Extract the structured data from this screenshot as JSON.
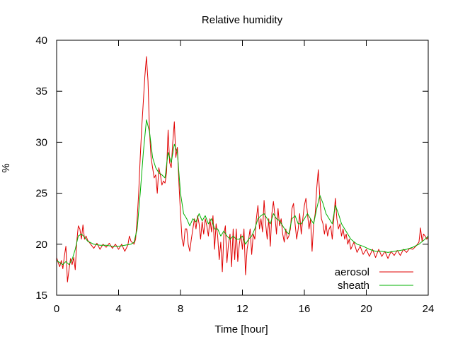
{
  "chart_data": {
    "type": "line",
    "title": "Relative humidity",
    "xlabel": "Time [hour]",
    "ylabel": "%",
    "xlim": [
      0,
      24
    ],
    "ylim": [
      15,
      40
    ],
    "xticks": [
      0,
      4,
      8,
      12,
      16,
      20,
      24
    ],
    "yticks": [
      15,
      20,
      25,
      30,
      35,
      40
    ],
    "grid": false,
    "legend_position": "bottom-right",
    "series": [
      {
        "name": "aerosol",
        "color": "#e00000",
        "points": [
          [
            0,
            18.7
          ],
          [
            0.1,
            18.2
          ],
          [
            0.2,
            17.8
          ],
          [
            0.3,
            18.4
          ],
          [
            0.4,
            17.6
          ],
          [
            0.5,
            18.8
          ],
          [
            0.6,
            19.8
          ],
          [
            0.7,
            16.3
          ],
          [
            0.8,
            17.5
          ],
          [
            0.9,
            18.6
          ],
          [
            1.0,
            18.0
          ],
          [
            1.1,
            18.7
          ],
          [
            1.2,
            17.5
          ],
          [
            1.3,
            20.2
          ],
          [
            1.4,
            21.8
          ],
          [
            1.5,
            21.5
          ],
          [
            1.6,
            20.5
          ],
          [
            1.7,
            21.9
          ],
          [
            1.8,
            20.5
          ],
          [
            1.9,
            20.8
          ],
          [
            2.0,
            20.4
          ],
          [
            2.2,
            20.0
          ],
          [
            2.4,
            19.6
          ],
          [
            2.6,
            20.1
          ],
          [
            2.8,
            19.5
          ],
          [
            3.0,
            20.0
          ],
          [
            3.2,
            19.7
          ],
          [
            3.4,
            20.1
          ],
          [
            3.6,
            19.6
          ],
          [
            3.8,
            20.0
          ],
          [
            4.0,
            19.5
          ],
          [
            4.2,
            20.0
          ],
          [
            4.4,
            19.3
          ],
          [
            4.6,
            19.9
          ],
          [
            4.7,
            20.8
          ],
          [
            4.8,
            20.3
          ],
          [
            5.0,
            20.0
          ],
          [
            5.1,
            20.5
          ],
          [
            5.2,
            22.5
          ],
          [
            5.3,
            25.0
          ],
          [
            5.4,
            28.5
          ],
          [
            5.5,
            31.5
          ],
          [
            5.6,
            34.0
          ],
          [
            5.7,
            36.5
          ],
          [
            5.8,
            38.4
          ],
          [
            5.9,
            36.0
          ],
          [
            6.0,
            31.0
          ],
          [
            6.1,
            28.5
          ],
          [
            6.2,
            27.5
          ],
          [
            6.3,
            26.5
          ],
          [
            6.4,
            26.8
          ],
          [
            6.5,
            25.0
          ],
          [
            6.6,
            27.5
          ],
          [
            6.7,
            26.8
          ],
          [
            6.8,
            25.8
          ],
          [
            6.9,
            26.2
          ],
          [
            7.0,
            26.0
          ],
          [
            7.1,
            27.0
          ],
          [
            7.2,
            31.2
          ],
          [
            7.3,
            28.0
          ],
          [
            7.4,
            27.5
          ],
          [
            7.5,
            30.0
          ],
          [
            7.6,
            32.0
          ],
          [
            7.7,
            28.5
          ],
          [
            7.8,
            29.5
          ],
          [
            7.9,
            26.0
          ],
          [
            8.0,
            23.0
          ],
          [
            8.1,
            20.5
          ],
          [
            8.2,
            19.8
          ],
          [
            8.3,
            21.5
          ],
          [
            8.4,
            21.5
          ],
          [
            8.5,
            20.0
          ],
          [
            8.6,
            19.3
          ],
          [
            8.7,
            20.5
          ],
          [
            8.8,
            21.5
          ],
          [
            8.9,
            22.5
          ],
          [
            9.0,
            21.5
          ],
          [
            9.1,
            22.8
          ],
          [
            9.2,
            22.0
          ],
          [
            9.3,
            20.5
          ],
          [
            9.4,
            22.2
          ],
          [
            9.5,
            21.0
          ],
          [
            9.6,
            22.5
          ],
          [
            9.7,
            21.8
          ],
          [
            9.8,
            20.8
          ],
          [
            9.9,
            22.5
          ],
          [
            10.0,
            21.2
          ],
          [
            10.1,
            22.8
          ],
          [
            10.2,
            19.5
          ],
          [
            10.3,
            22.0
          ],
          [
            10.4,
            20.8
          ],
          [
            10.5,
            18.5
          ],
          [
            10.6,
            20.2
          ],
          [
            10.7,
            17.3
          ],
          [
            10.8,
            21.0
          ],
          [
            10.9,
            21.8
          ],
          [
            11.0,
            18.2
          ],
          [
            11.1,
            20.0
          ],
          [
            11.2,
            21.0
          ],
          [
            11.3,
            17.8
          ],
          [
            11.4,
            21.5
          ],
          [
            11.5,
            18.5
          ],
          [
            11.6,
            21.5
          ],
          [
            11.7,
            18.3
          ],
          [
            11.8,
            20.0
          ],
          [
            11.9,
            21.0
          ],
          [
            12.0,
            19.5
          ],
          [
            12.1,
            21.5
          ],
          [
            12.2,
            17.0
          ],
          [
            12.3,
            19.5
          ],
          [
            12.4,
            20.5
          ],
          [
            12.5,
            21.5
          ],
          [
            12.6,
            19.0
          ],
          [
            12.7,
            21.0
          ],
          [
            12.8,
            20.5
          ],
          [
            12.9,
            22.5
          ],
          [
            13.0,
            23.8
          ],
          [
            13.1,
            21.5
          ],
          [
            13.2,
            22.5
          ],
          [
            13.3,
            21.2
          ],
          [
            13.4,
            24.3
          ],
          [
            13.5,
            22.0
          ],
          [
            13.6,
            20.5
          ],
          [
            13.7,
            22.5
          ],
          [
            13.8,
            19.8
          ],
          [
            13.9,
            23.0
          ],
          [
            14.0,
            24.2
          ],
          [
            14.1,
            22.8
          ],
          [
            14.2,
            21.0
          ],
          [
            14.3,
            23.5
          ],
          [
            14.4,
            21.8
          ],
          [
            14.5,
            22.5
          ],
          [
            14.6,
            21.0
          ],
          [
            14.7,
            20.2
          ],
          [
            14.8,
            21.5
          ],
          [
            14.9,
            20.5
          ],
          [
            15.0,
            20.8
          ],
          [
            15.1,
            21.5
          ],
          [
            15.2,
            23.5
          ],
          [
            15.3,
            24.0
          ],
          [
            15.4,
            22.0
          ],
          [
            15.5,
            20.5
          ],
          [
            15.6,
            21.5
          ],
          [
            15.7,
            23.0
          ],
          [
            15.8,
            21.0
          ],
          [
            15.9,
            22.5
          ],
          [
            16.0,
            23.8
          ],
          [
            16.1,
            24.5
          ],
          [
            16.2,
            23.0
          ],
          [
            16.3,
            21.5
          ],
          [
            16.4,
            22.5
          ],
          [
            16.5,
            19.3
          ],
          [
            16.6,
            22.0
          ],
          [
            16.7,
            23.0
          ],
          [
            16.8,
            25.5
          ],
          [
            16.9,
            27.3
          ],
          [
            17.0,
            24.5
          ],
          [
            17.1,
            22.5
          ],
          [
            17.2,
            22.0
          ],
          [
            17.3,
            21.0
          ],
          [
            17.4,
            22.0
          ],
          [
            17.5,
            20.8
          ],
          [
            17.6,
            21.5
          ],
          [
            17.7,
            21.8
          ],
          [
            17.8,
            20.5
          ],
          [
            17.9,
            22.5
          ],
          [
            18.0,
            24.5
          ],
          [
            18.1,
            22.5
          ],
          [
            18.2,
            21.5
          ],
          [
            18.3,
            22.0
          ],
          [
            18.4,
            20.8
          ],
          [
            18.5,
            21.5
          ],
          [
            18.6,
            20.5
          ],
          [
            18.7,
            21.0
          ],
          [
            18.8,
            20.0
          ],
          [
            18.9,
            20.5
          ],
          [
            19.0,
            19.5
          ],
          [
            19.2,
            20.2
          ],
          [
            19.4,
            19.2
          ],
          [
            19.6,
            19.8
          ],
          [
            19.8,
            19.0
          ],
          [
            20.0,
            19.5
          ],
          [
            20.2,
            18.8
          ],
          [
            20.4,
            19.5
          ],
          [
            20.6,
            18.7
          ],
          [
            20.8,
            19.5
          ],
          [
            21.0,
            18.8
          ],
          [
            21.2,
            19.3
          ],
          [
            21.4,
            18.6
          ],
          [
            21.6,
            19.3
          ],
          [
            21.8,
            18.9
          ],
          [
            22.0,
            19.4
          ],
          [
            22.2,
            18.9
          ],
          [
            22.4,
            19.5
          ],
          [
            22.6,
            19.2
          ],
          [
            22.8,
            19.6
          ],
          [
            23.0,
            19.5
          ],
          [
            23.2,
            19.8
          ],
          [
            23.4,
            20.2
          ],
          [
            23.5,
            21.6
          ],
          [
            23.6,
            20.3
          ],
          [
            23.7,
            21.0
          ],
          [
            23.8,
            20.8
          ],
          [
            23.9,
            20.5
          ],
          [
            24.0,
            20.7
          ]
        ]
      },
      {
        "name": "sheath",
        "color": "#00b000",
        "points": [
          [
            0,
            18.4
          ],
          [
            0.2,
            18.2
          ],
          [
            0.4,
            18.0
          ],
          [
            0.6,
            18.3
          ],
          [
            0.8,
            18.0
          ],
          [
            1.0,
            18.5
          ],
          [
            1.2,
            19.5
          ],
          [
            1.4,
            20.8
          ],
          [
            1.6,
            21.0
          ],
          [
            1.8,
            20.7
          ],
          [
            2.0,
            20.3
          ],
          [
            2.4,
            20.0
          ],
          [
            2.8,
            19.9
          ],
          [
            3.2,
            19.9
          ],
          [
            3.6,
            19.8
          ],
          [
            4.0,
            19.8
          ],
          [
            4.4,
            19.9
          ],
          [
            4.8,
            20.0
          ],
          [
            5.0,
            20.2
          ],
          [
            5.2,
            21.5
          ],
          [
            5.4,
            25.0
          ],
          [
            5.6,
            29.0
          ],
          [
            5.8,
            32.2
          ],
          [
            6.0,
            31.0
          ],
          [
            6.2,
            28.5
          ],
          [
            6.4,
            27.5
          ],
          [
            6.6,
            27.0
          ],
          [
            6.8,
            26.8
          ],
          [
            7.0,
            26.5
          ],
          [
            7.2,
            29.0
          ],
          [
            7.4,
            28.0
          ],
          [
            7.6,
            29.8
          ],
          [
            7.8,
            29.0
          ],
          [
            8.0,
            25.0
          ],
          [
            8.2,
            23.0
          ],
          [
            8.4,
            22.5
          ],
          [
            8.6,
            21.8
          ],
          [
            8.8,
            22.5
          ],
          [
            9.0,
            22.2
          ],
          [
            9.2,
            23.0
          ],
          [
            9.4,
            22.3
          ],
          [
            9.6,
            22.8
          ],
          [
            9.8,
            22.0
          ],
          [
            10.0,
            22.5
          ],
          [
            10.2,
            21.5
          ],
          [
            10.4,
            21.5
          ],
          [
            10.6,
            20.8
          ],
          [
            10.8,
            21.3
          ],
          [
            11.0,
            20.8
          ],
          [
            11.2,
            20.5
          ],
          [
            11.4,
            20.8
          ],
          [
            11.6,
            20.5
          ],
          [
            11.8,
            20.5
          ],
          [
            12.0,
            20.8
          ],
          [
            12.2,
            20.0
          ],
          [
            12.4,
            20.5
          ],
          [
            12.6,
            20.8
          ],
          [
            12.8,
            21.5
          ],
          [
            13.0,
            22.5
          ],
          [
            13.2,
            22.8
          ],
          [
            13.4,
            23.0
          ],
          [
            13.6,
            22.5
          ],
          [
            13.8,
            22.0
          ],
          [
            14.0,
            23.0
          ],
          [
            14.2,
            22.5
          ],
          [
            14.4,
            22.3
          ],
          [
            14.6,
            21.8
          ],
          [
            14.8,
            21.3
          ],
          [
            15.0,
            21.0
          ],
          [
            15.2,
            22.5
          ],
          [
            15.4,
            22.8
          ],
          [
            15.6,
            22.0
          ],
          [
            15.8,
            22.0
          ],
          [
            16.0,
            22.5
          ],
          [
            16.2,
            23.0
          ],
          [
            16.4,
            22.5
          ],
          [
            16.6,
            22.0
          ],
          [
            16.8,
            23.5
          ],
          [
            17.0,
            24.8
          ],
          [
            17.2,
            24.0
          ],
          [
            17.4,
            23.0
          ],
          [
            17.6,
            22.5
          ],
          [
            17.8,
            22.0
          ],
          [
            18.0,
            23.8
          ],
          [
            18.2,
            23.0
          ],
          [
            18.4,
            22.0
          ],
          [
            18.6,
            21.5
          ],
          [
            18.8,
            21.0
          ],
          [
            19.0,
            20.5
          ],
          [
            19.4,
            20.0
          ],
          [
            19.8,
            19.8
          ],
          [
            20.2,
            19.5
          ],
          [
            20.6,
            19.3
          ],
          [
            21.0,
            19.3
          ],
          [
            21.4,
            19.2
          ],
          [
            21.8,
            19.3
          ],
          [
            22.2,
            19.4
          ],
          [
            22.6,
            19.5
          ],
          [
            23.0,
            19.7
          ],
          [
            23.4,
            20.0
          ],
          [
            23.8,
            20.5
          ],
          [
            24.0,
            20.8
          ]
        ]
      }
    ]
  }
}
